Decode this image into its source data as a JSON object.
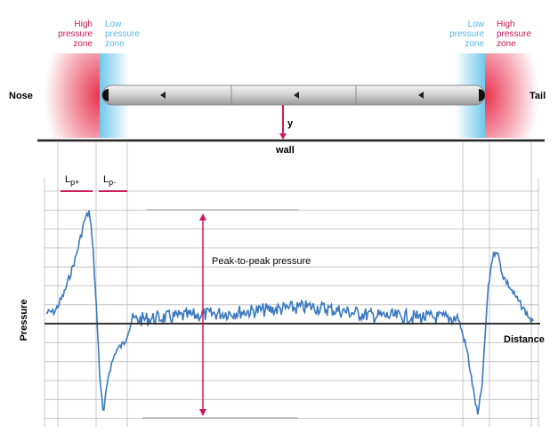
{
  "top": {
    "left_high": "High pressure zone",
    "left_low": "Low pressure zone",
    "right_low": "Low pressure zone",
    "right_high": "High pressure zone",
    "nose": "Nose",
    "tail": "Tail",
    "y": "y",
    "wall": "wall"
  },
  "plot": {
    "lp_plus": {
      "main": "L",
      "sub": "p+"
    },
    "lp_minus": {
      "main": "L",
      "sub": "p-"
    },
    "peak": "Peak-to-peak pressure",
    "y_label": "Pressure",
    "x_label": "Distance"
  }
}
